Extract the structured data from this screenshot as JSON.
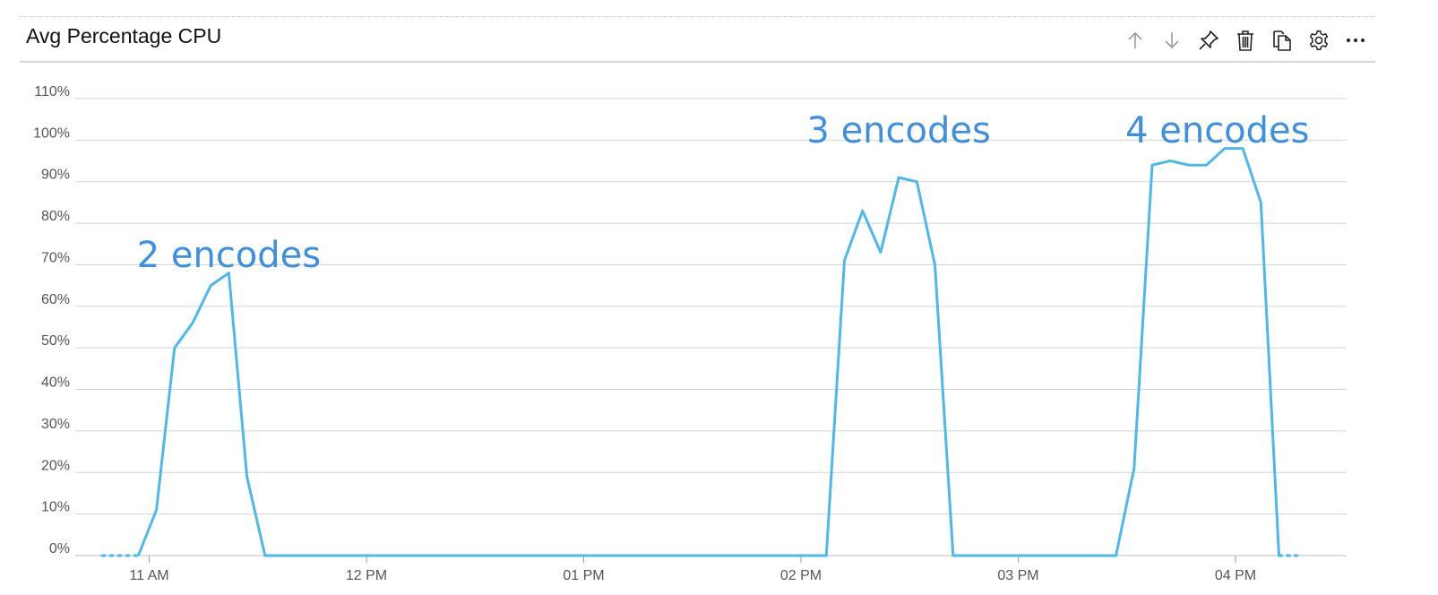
{
  "header": {
    "title": "Avg Percentage CPU",
    "toolbar": [
      {
        "name": "move-up-button",
        "icon": "arrow-up-icon"
      },
      {
        "name": "move-down-button",
        "icon": "arrow-down-icon"
      },
      {
        "name": "pin-button",
        "icon": "pin-icon"
      },
      {
        "name": "delete-button",
        "icon": "trash-icon"
      },
      {
        "name": "clone-button",
        "icon": "copy-icon"
      },
      {
        "name": "settings-button",
        "icon": "gear-icon"
      },
      {
        "name": "more-button",
        "icon": "ellipsis-icon"
      }
    ]
  },
  "colors": {
    "series": "#4db8ec",
    "annotation": "#3d8fe3",
    "grid": "#d3d3d3",
    "axis_text": "#555555"
  },
  "chart_data": {
    "type": "line",
    "title": "",
    "xlabel": "",
    "ylabel": "",
    "x_ticks": [
      "11 AM",
      "12 PM",
      "01 PM",
      "02 PM",
      "03 PM",
      "04 PM"
    ],
    "xlim": [
      "10:42",
      "16:19"
    ],
    "y_ticks": [
      "0%",
      "10%",
      "20%",
      "30%",
      "40%",
      "50%",
      "60%",
      "70%",
      "80%",
      "90%",
      "100%",
      "110%"
    ],
    "ylim": [
      0,
      110
    ],
    "grid": true,
    "legend": "none",
    "series": [
      {
        "points": [
          [
            "10:57",
            0
          ],
          [
            "11:02",
            11
          ],
          [
            "11:07",
            50
          ],
          [
            "11:12",
            56
          ],
          [
            "11:17",
            65
          ],
          [
            "11:22",
            68
          ],
          [
            "11:27",
            19
          ],
          [
            "11:32",
            0
          ],
          [
            "13:00",
            0
          ],
          [
            "14:07",
            0
          ],
          [
            "14:12",
            71
          ],
          [
            "14:17",
            83
          ],
          [
            "14:22",
            73
          ],
          [
            "14:27",
            91
          ],
          [
            "14:32",
            90
          ],
          [
            "14:37",
            70
          ],
          [
            "14:42",
            0
          ],
          [
            "15:27",
            0
          ],
          [
            "15:32",
            21
          ],
          [
            "15:37",
            94
          ],
          [
            "15:42",
            95
          ],
          [
            "15:47",
            94
          ],
          [
            "15:52",
            94
          ],
          [
            "15:57",
            98
          ],
          [
            "16:02",
            98
          ],
          [
            "16:07",
            85
          ],
          [
            "16:12",
            0
          ]
        ],
        "missing": [
          [
            [
              "10:47",
              0
            ],
            [
              "10:57",
              0
            ]
          ],
          [
            [
              "16:12",
              0
            ],
            [
              "16:17",
              0
            ]
          ]
        ]
      }
    ],
    "annotations": [
      {
        "text": "2 encodes",
        "x": "11:22",
        "y": 72
      },
      {
        "text": "3 encodes",
        "x": "14:27",
        "y": 102
      },
      {
        "text": "4 encodes",
        "x": "15:55",
        "y": 102
      }
    ]
  }
}
